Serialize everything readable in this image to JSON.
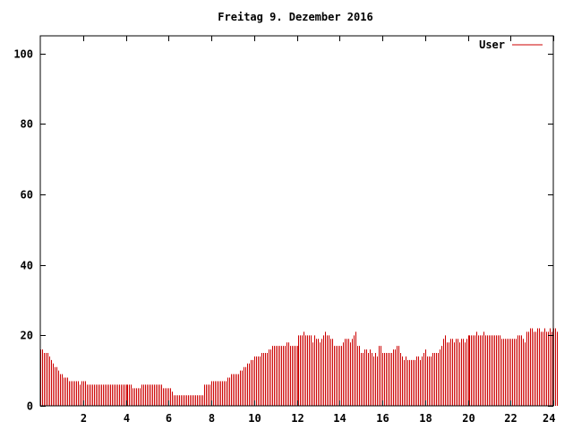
{
  "chart_data": {
    "type": "bar",
    "title": "Freitag 9. Dezember 2016",
    "xlabel": "",
    "ylabel": "",
    "xlim": [
      0,
      24
    ],
    "ylim": [
      0,
      105
    ],
    "x_ticks": [
      2,
      4,
      6,
      8,
      10,
      12,
      14,
      16,
      18,
      20,
      22,
      24
    ],
    "y_ticks": [
      0,
      20,
      40,
      60,
      80,
      100
    ],
    "grid": false,
    "legend_position": "top-right",
    "series": [
      {
        "name": "User",
        "color": "#cc0000",
        "sample_interval_minutes": 5,
        "values": [
          16,
          16,
          15,
          15,
          15,
          14,
          13,
          12,
          11,
          11,
          10,
          9,
          9,
          8,
          8,
          8,
          7,
          7,
          7,
          7,
          7,
          7,
          6,
          7,
          7,
          7,
          6,
          6,
          6,
          6,
          6,
          6,
          6,
          6,
          6,
          6,
          6,
          6,
          6,
          6,
          6,
          6,
          6,
          6,
          6,
          6,
          6,
          6,
          6,
          6,
          6,
          6,
          5,
          5,
          5,
          5,
          5,
          6,
          6,
          6,
          6,
          6,
          6,
          6,
          6,
          6,
          6,
          6,
          6,
          5,
          5,
          5,
          5,
          5,
          4,
          3,
          3,
          3,
          3,
          3,
          3,
          3,
          3,
          3,
          3,
          3,
          3,
          3,
          3,
          3,
          3,
          3,
          6,
          6,
          6,
          6,
          7,
          7,
          7,
          7,
          7,
          7,
          7,
          7,
          7,
          8,
          8,
          9,
          9,
          9,
          9,
          9,
          10,
          10,
          11,
          11,
          12,
          12,
          13,
          13,
          14,
          14,
          14,
          14,
          15,
          15,
          15,
          15,
          16,
          16,
          17,
          17,
          17,
          17,
          17,
          17,
          17,
          17,
          18,
          18,
          17,
          17,
          17,
          17,
          17,
          20,
          20,
          20,
          21,
          20,
          20,
          20,
          20,
          18,
          20,
          19,
          19,
          18,
          19,
          20,
          21,
          20,
          20,
          19,
          19,
          17,
          17,
          17,
          17,
          17,
          18,
          19,
          19,
          19,
          18,
          19,
          20,
          21,
          17,
          17,
          15,
          15,
          16,
          16,
          15,
          16,
          15,
          14,
          15,
          14,
          17,
          17,
          15,
          15,
          15,
          15,
          15,
          15,
          16,
          16,
          17,
          17,
          15,
          14,
          13,
          14,
          13,
          13,
          13,
          13,
          13,
          14,
          14,
          13,
          14,
          15,
          16,
          14,
          14,
          14,
          15,
          15,
          15,
          15,
          16,
          17,
          19,
          20,
          18,
          18,
          19,
          19,
          18,
          19,
          19,
          18,
          19,
          19,
          18,
          19,
          20,
          20,
          20,
          20,
          20,
          21,
          20,
          20,
          20,
          21,
          20,
          20,
          20,
          20,
          20,
          20,
          20,
          20,
          20,
          19,
          19,
          19,
          19,
          19,
          19,
          19,
          19,
          19,
          20,
          20,
          20,
          19,
          18,
          21,
          21,
          22,
          22,
          21,
          21,
          22,
          22,
          21,
          21,
          22,
          21,
          21,
          22,
          21,
          22,
          22,
          21
        ]
      }
    ]
  }
}
